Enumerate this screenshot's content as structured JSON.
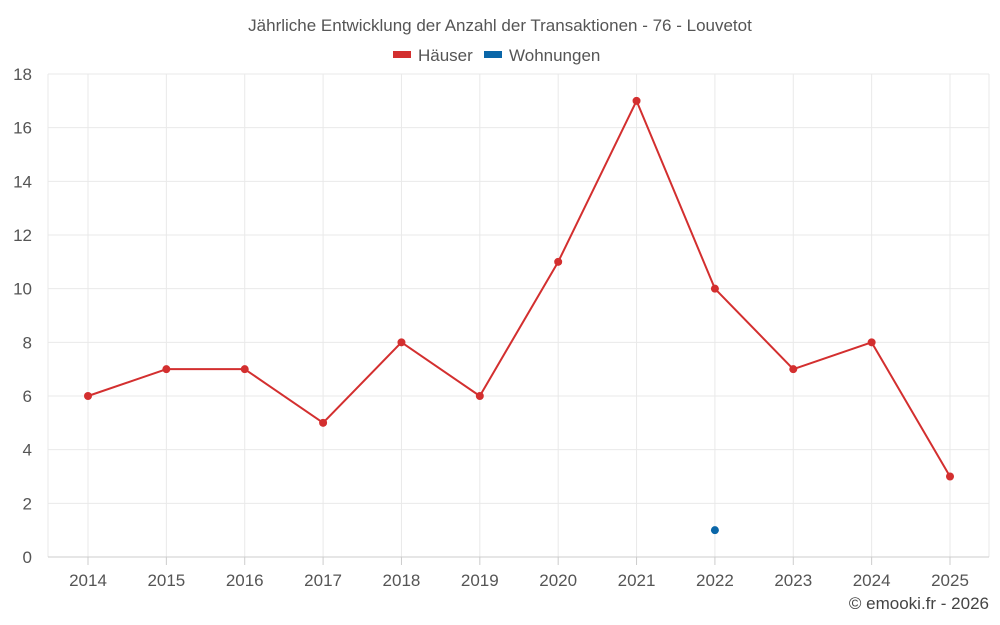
{
  "chart_data": {
    "type": "line",
    "title": "Jährliche Entwicklung der Anzahl der Transaktionen - 76 - Louvetot",
    "categories": [
      "2014",
      "2015",
      "2016",
      "2017",
      "2018",
      "2019",
      "2020",
      "2021",
      "2022",
      "2023",
      "2024",
      "2025"
    ],
    "yticks": [
      "0",
      "2",
      "4",
      "6",
      "8",
      "10",
      "12",
      "14",
      "16",
      "18"
    ],
    "ylim": [
      0,
      18
    ],
    "grid": true,
    "legend_position": "top-center",
    "series": [
      {
        "name": "Häuser",
        "color": "#d32f2f",
        "values": [
          6,
          7,
          7,
          5,
          8,
          6,
          11,
          17,
          10,
          7,
          8,
          3
        ]
      },
      {
        "name": "Wohnungen",
        "color": "#0a66a8",
        "values": [
          null,
          null,
          null,
          null,
          null,
          null,
          null,
          null,
          1,
          null,
          null,
          null
        ]
      }
    ],
    "credit": "© emooki.fr - 2026"
  }
}
